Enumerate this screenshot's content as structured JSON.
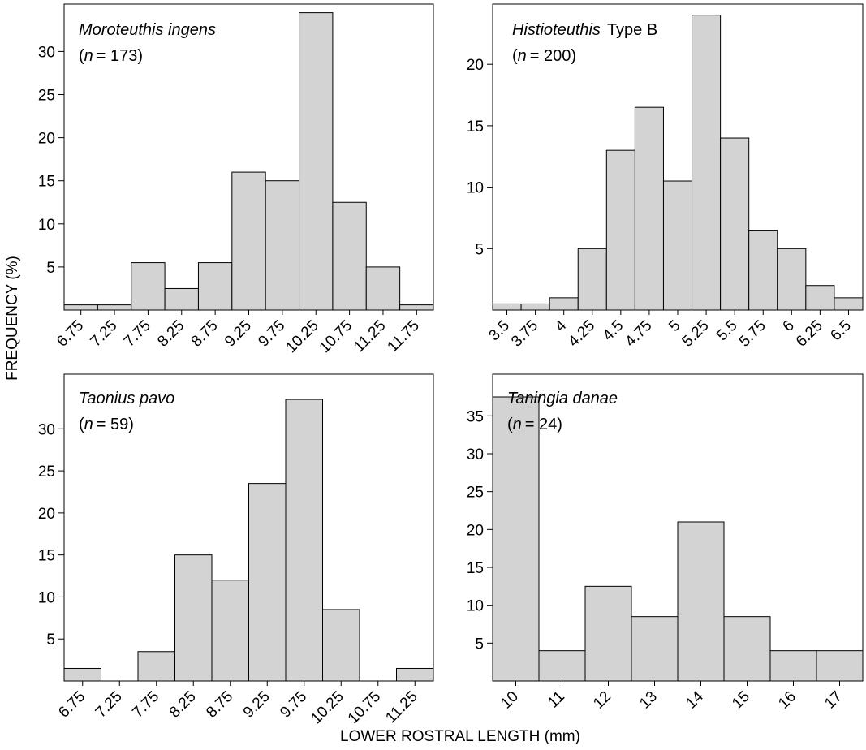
{
  "figure": {
    "ylabel": "FREQUENCY (%)",
    "xlabel": "LOWER ROSTRAL LENGTH (mm)"
  },
  "chart_data": [
    {
      "type": "bar",
      "species": "Moroteuthis ingens",
      "n_label": "n",
      "n_value": "= 173)",
      "categories": [
        "6.75",
        "7.25",
        "7.75",
        "8.25",
        "8.75",
        "9.25",
        "9.75",
        "10.25",
        "10.75",
        "11.25",
        "11.75"
      ],
      "values": [
        0.6,
        0.6,
        5.5,
        2.5,
        5.5,
        16,
        15,
        34.5,
        12.5,
        5,
        0.6
      ],
      "yticks": [
        5,
        10,
        15,
        20,
        25,
        30
      ],
      "ylim": [
        0,
        35.5
      ],
      "bar_color": "#d3d3d3"
    },
    {
      "type": "bar",
      "species": "Histioteuthis",
      "species_suffix": "Type B",
      "n_label": "n",
      "n_value": "= 200)",
      "categories": [
        "3.5",
        "3.75",
        "4",
        "4.25",
        "4.5",
        "4.75",
        "5",
        "5.25",
        "5.5",
        "5.75",
        "6",
        "6.25",
        "6.5"
      ],
      "values": [
        0.5,
        0.5,
        1,
        5,
        13,
        16.5,
        10.5,
        24,
        14,
        6.5,
        5,
        2,
        1
      ],
      "yticks": [
        5,
        10,
        15,
        20
      ],
      "ylim": [
        0,
        24.9
      ],
      "bar_color": "#d3d3d3"
    },
    {
      "type": "bar",
      "species": "Taonius pavo",
      "n_label": "n",
      "n_value": "= 59)",
      "categories": [
        "6.75",
        "7.25",
        "7.75",
        "8.25",
        "8.75",
        "9.25",
        "9.75",
        "10.25",
        "10.75",
        "11.25"
      ],
      "values": [
        1.5,
        0,
        3.5,
        15,
        12,
        23.5,
        33.5,
        8.5,
        0,
        1.5
      ],
      "yticks": [
        5,
        10,
        15,
        20,
        25,
        30
      ],
      "ylim": [
        0,
        36.5
      ],
      "bar_color": "#d3d3d3"
    },
    {
      "type": "bar",
      "species": "Taningia danae",
      "n_label": "n",
      "n_value": "= 24)",
      "categories": [
        "10",
        "11",
        "12",
        "13",
        "14",
        "15",
        "16",
        "17"
      ],
      "values": [
        37.5,
        4,
        12.5,
        8.5,
        21,
        8.5,
        4,
        4
      ],
      "yticks": [
        5,
        10,
        15,
        20,
        25,
        30,
        35
      ],
      "ylim": [
        0,
        40.5
      ],
      "bar_color": "#d3d3d3"
    }
  ]
}
